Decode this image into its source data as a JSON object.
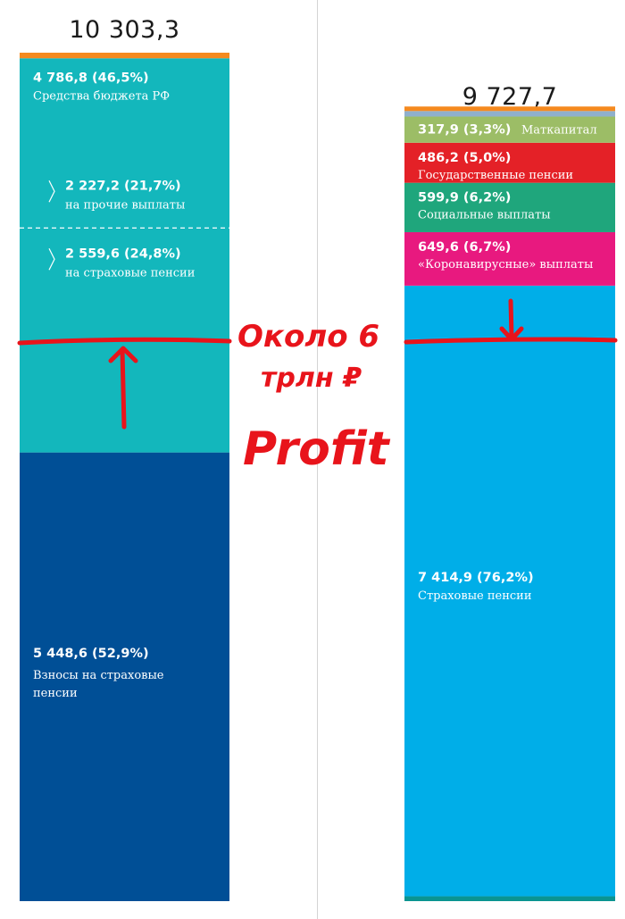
{
  "colors": {
    "budget": "#13b7bc",
    "contributions": "#004f96",
    "other_left": "#f58a1f",
    "insurance_pensions": "#00aee8",
    "covid": "#e8197f",
    "social": "#1fa67c",
    "state_pensions": "#e42127",
    "matcapital": "#9cbd66",
    "grey_strip": "#8fb0cc",
    "orange_strip": "#f58a1f",
    "bottom_strip": "#0a9491",
    "annotation": "#e8141b"
  },
  "chart_data": [
    {
      "type": "bar",
      "stacked": true,
      "total_label": "10 303,3",
      "total": 10303.3,
      "segments": [
        {
          "value": 5448.6,
          "value_label": "5 448,6 (52,9%)",
          "label_lines": [
            "Взносы на страховые",
            "пенсии"
          ],
          "color": "#004f96"
        },
        {
          "value": 4786.8,
          "value_label": "4 786,8 (46,5%)",
          "label_lines": [
            "Средства бюджета РФ"
          ],
          "color": "#13b7bc",
          "sub_segments": [
            {
              "value": 2227.2,
              "value_label": "2 227,2 (21,7%)",
              "label": "на прочие выплаты"
            },
            {
              "value": 2559.6,
              "value_label": "2 559,6 (24,8%)",
              "label": "на страховые пенсии"
            }
          ]
        },
        {
          "value": 67.9,
          "value_label": "",
          "label_lines": [],
          "color": "#f58a1f"
        }
      ]
    },
    {
      "type": "bar",
      "stacked": true,
      "total_label": "9 727,7",
      "total": 9727.7,
      "segments": [
        {
          "value": 59.2,
          "value_label": "",
          "label_lines": [],
          "color": "#0a9491"
        },
        {
          "value": 7414.9,
          "value_label": "7 414,9 (76,2%)",
          "label_lines": [
            "Страховые пенсии"
          ],
          "color": "#00aee8"
        },
        {
          "value": 649.6,
          "value_label": "649,6 (6,7%)",
          "label_lines": [
            "«Коронавирусные» выплаты"
          ],
          "color": "#e8197f"
        },
        {
          "value": 599.9,
          "value_label": "599,9 (6,2%)",
          "label_lines": [
            "Социальные выплаты"
          ],
          "color": "#1fa67c"
        },
        {
          "value": 486.2,
          "value_label": "486,2 (5,0%)",
          "label_lines": [
            "Государственные пенсии"
          ],
          "color": "#e42127"
        },
        {
          "value": 317.9,
          "value_label": "317,9 (3,3%)",
          "label_inline": "Маткапитал",
          "label_lines": [],
          "color": "#9cbd66"
        },
        {
          "value": 67.0,
          "value_label": "",
          "label_lines": [],
          "color": "#8fb0cc"
        },
        {
          "value": 55.0,
          "value_label": "",
          "label_lines": [],
          "color": "#f58a1f"
        }
      ]
    }
  ],
  "annotation": {
    "lines": [
      "Около 6",
      "трлн ₽"
    ],
    "word": "Profit"
  }
}
